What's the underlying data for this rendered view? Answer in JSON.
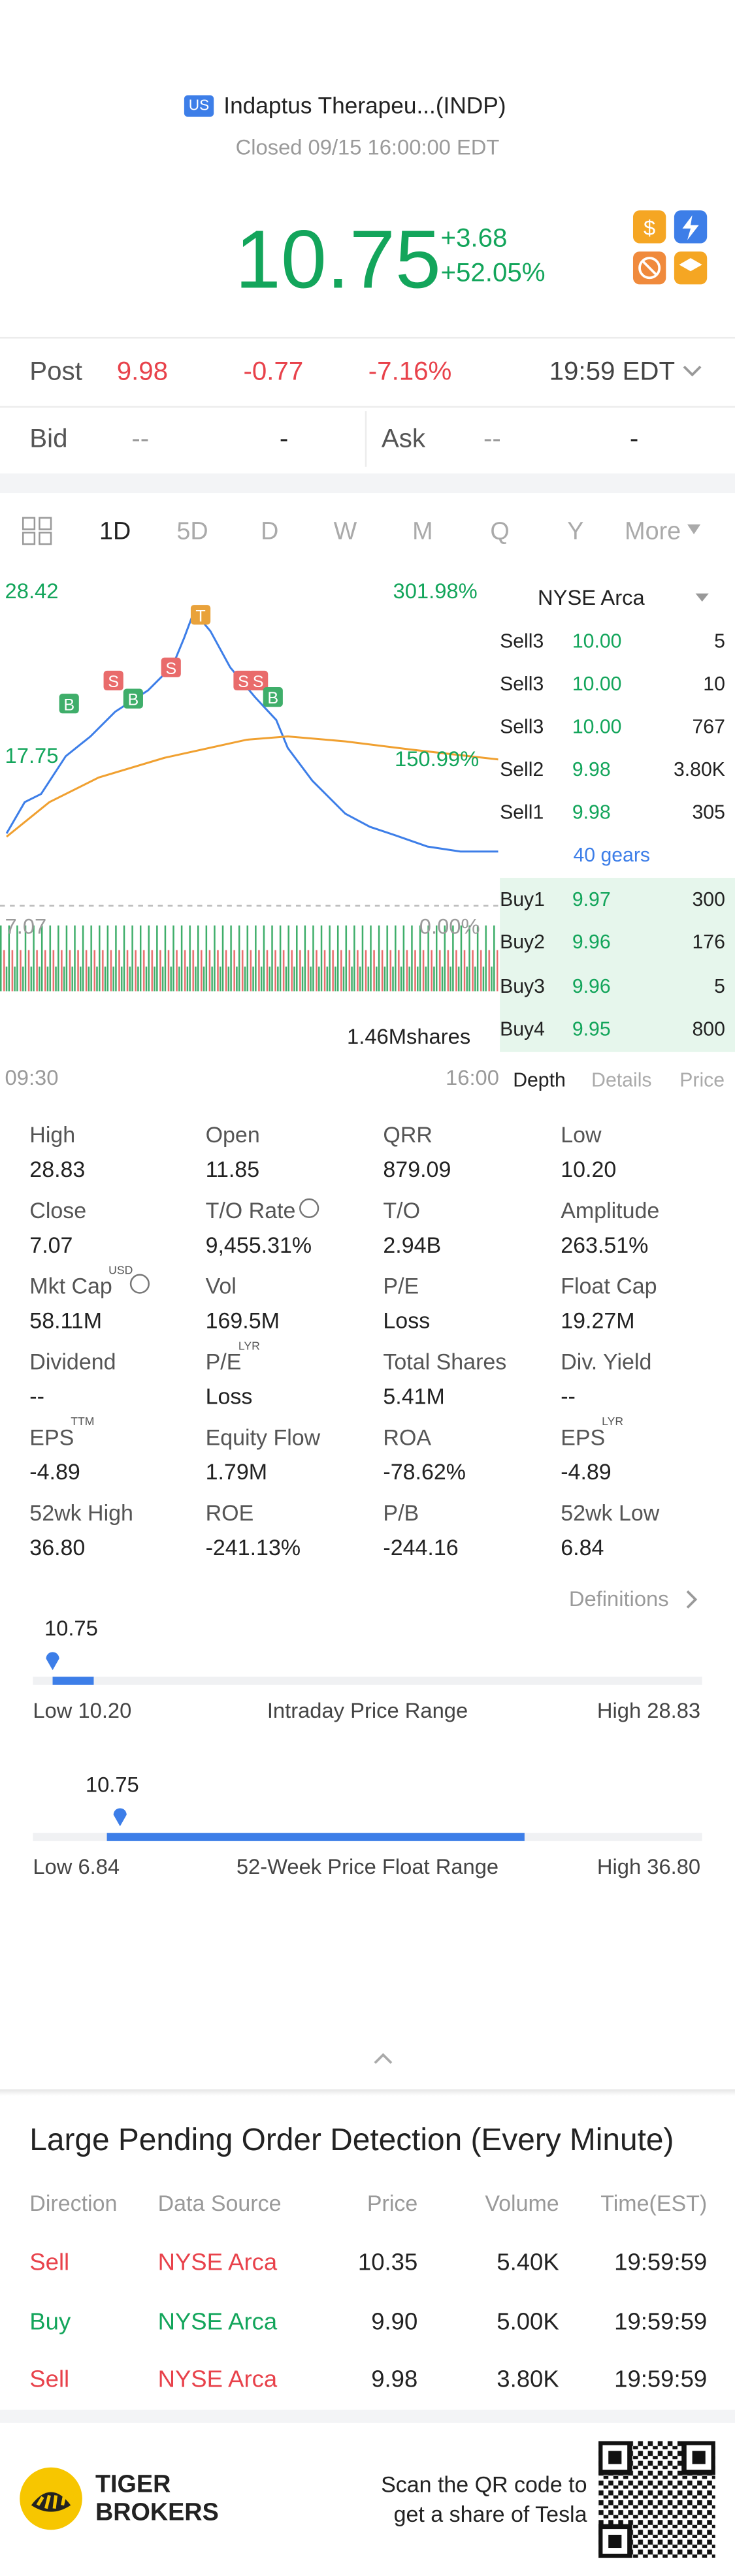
{
  "header": {
    "badge": "US",
    "name": "Indaptus Therapeu...(INDP)",
    "status": "Closed 09/15 16:00:00 EDT"
  },
  "quote": {
    "price": "10.75",
    "change": "+3.68",
    "change_pct": "+52.05%"
  },
  "post": {
    "label": "Post",
    "price": "9.98",
    "change": "-0.77",
    "change_pct": "-7.16%",
    "time": "19:59 EDT"
  },
  "bid_ask": {
    "bid_label": "Bid",
    "bid_price": "--",
    "bid_size": "-",
    "ask_label": "Ask",
    "ask_price": "--",
    "ask_size": "-"
  },
  "tabs": [
    "1D",
    "5D",
    "D",
    "W",
    "M",
    "Q",
    "Y",
    "More"
  ],
  "chart": {
    "high": "28.42",
    "high_pct": "301.98%",
    "mid": "17.75",
    "mid_pct": "150.99%",
    "low": "7.07",
    "low_pct": "0.00%",
    "volume": "1.46Mshares",
    "start": "09:30",
    "end": "16:00",
    "markers": [
      "B",
      "B",
      "S",
      "S",
      "T",
      "S",
      "S",
      "B"
    ]
  },
  "order_book": {
    "exchange": "NYSE Arca",
    "sells": [
      [
        "Sell3",
        "10.00",
        "5"
      ],
      [
        "Sell3",
        "10.00",
        "10"
      ],
      [
        "Sell3",
        "10.00",
        "767"
      ],
      [
        "Sell2",
        "9.98",
        "3.80K"
      ],
      [
        "Sell1",
        "9.98",
        "305"
      ]
    ],
    "gears": "40 gears",
    "buys": [
      [
        "Buy1",
        "9.97",
        "300"
      ],
      [
        "Buy2",
        "9.96",
        "176"
      ],
      [
        "Buy3",
        "9.96",
        "5"
      ],
      [
        "Buy4",
        "9.95",
        "800"
      ]
    ],
    "tabs": [
      "Depth",
      "Details",
      "Price"
    ]
  },
  "stats": [
    {
      "label": "High",
      "value": "28.83"
    },
    {
      "label": "Open",
      "value": "11.85"
    },
    {
      "label": "QRR",
      "value": "879.09"
    },
    {
      "label": "Low",
      "value": "10.20"
    },
    {
      "label": "Close",
      "value": "7.07"
    },
    {
      "label": "T/O Rate",
      "value": "9,455.31%"
    },
    {
      "label": "T/O",
      "value": "2.94B"
    },
    {
      "label": "Amplitude",
      "value": "263.51%"
    },
    {
      "label": "Mkt Cap",
      "sup": "USD",
      "value": "58.11M"
    },
    {
      "label": "Vol",
      "value": "169.5M"
    },
    {
      "label": "P/E",
      "value": "Loss"
    },
    {
      "label": "Float Cap",
      "value": "19.27M"
    },
    {
      "label": "Dividend",
      "value": "--"
    },
    {
      "label": "P/E",
      "sup": "LYR",
      "value": "Loss"
    },
    {
      "label": "Total Shares",
      "value": "5.41M"
    },
    {
      "label": "Div. Yield",
      "value": "--"
    },
    {
      "label": "EPS",
      "sup": "TTM",
      "value": "-4.89"
    },
    {
      "label": "Equity Flow",
      "value": "1.79M"
    },
    {
      "label": "ROA",
      "value": "-78.62%"
    },
    {
      "label": "EPS",
      "sup": "LYR",
      "value": "-4.89"
    },
    {
      "label": "52wk High",
      "value": "36.80"
    },
    {
      "label": "ROE",
      "value": "-241.13%"
    },
    {
      "label": "P/B",
      "value": "-244.16"
    },
    {
      "label": "52wk Low",
      "value": "6.84"
    }
  ],
  "definitions": "Definitions",
  "intraday": {
    "current": "10.75",
    "low": "Low 10.20",
    "title": "Intraday Price Range",
    "high": "High 28.83"
  },
  "week52": {
    "current": "10.75",
    "low": "Low 6.84",
    "title": "52-Week Price Float Range",
    "high": "High 36.80"
  },
  "large_orders": {
    "title": "Large Pending Order Detection (Every Minute)",
    "headers": [
      "Direction",
      "Data Source",
      "Price",
      "Volume",
      "Time(EST)"
    ],
    "rows": [
      [
        "Sell",
        "NYSE Arca",
        "10.35",
        "5.40K",
        "19:59:59"
      ],
      [
        "Buy",
        "NYSE Arca",
        "9.90",
        "5.00K",
        "19:59:59"
      ],
      [
        "Sell",
        "NYSE Arca",
        "9.98",
        "3.80K",
        "19:59:59"
      ]
    ]
  },
  "footer": {
    "brand": [
      "TIGER",
      "BROKERS"
    ],
    "qr_text": [
      "Scan the QR code to",
      "get a share of Tesla"
    ]
  }
}
